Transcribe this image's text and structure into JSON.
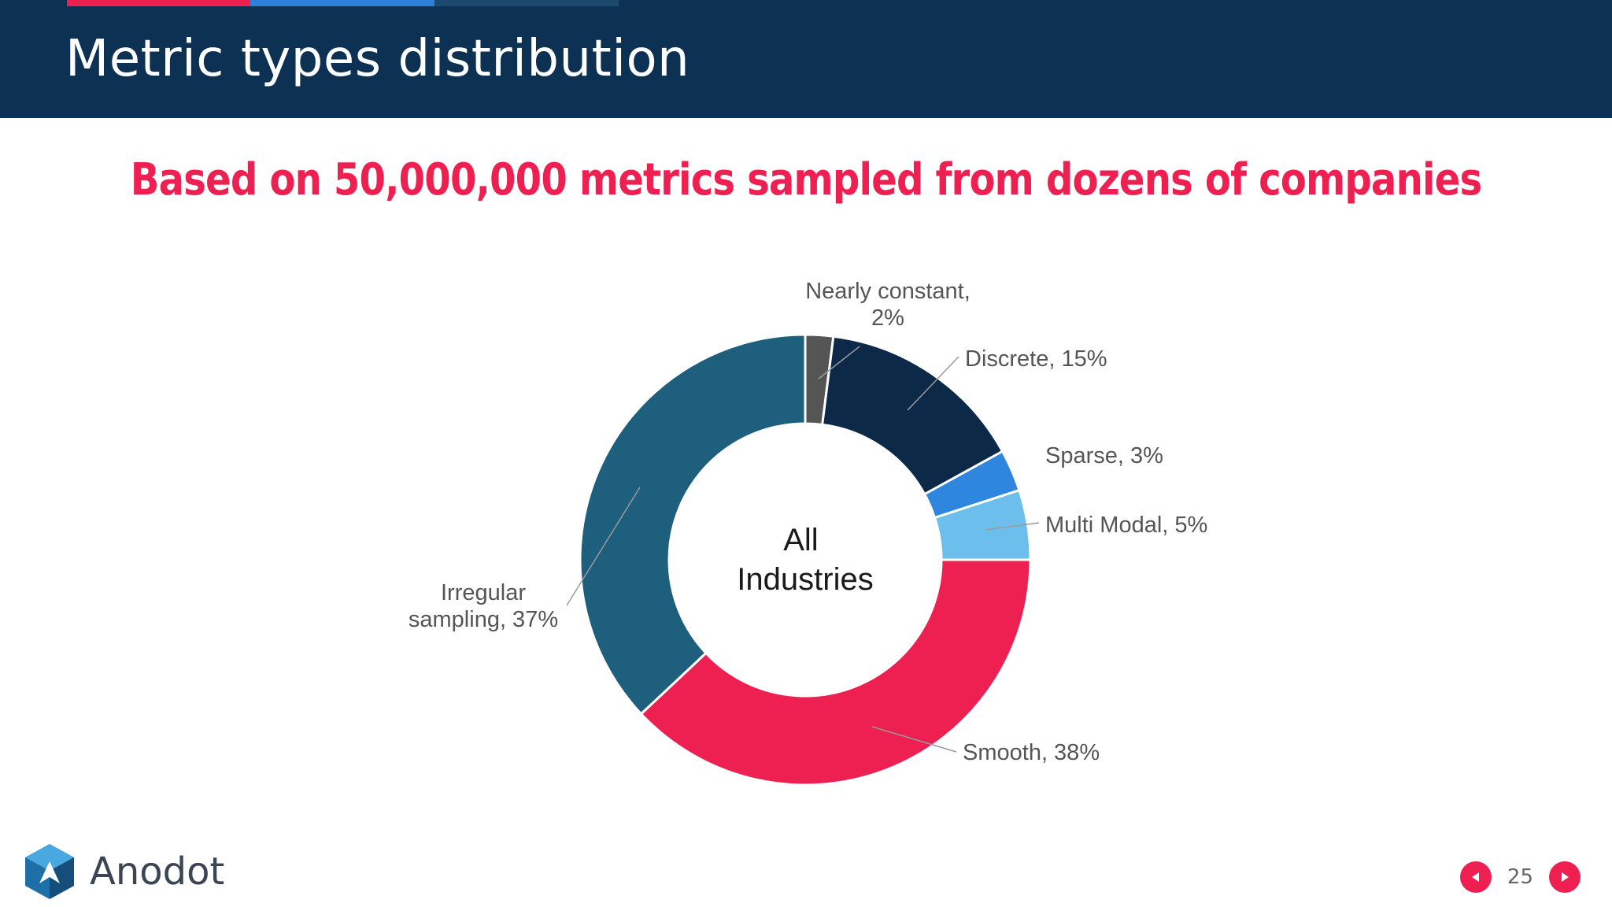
{
  "slide": {
    "title": "Metric types distribution",
    "subtitle": "Based on 50,000,000 metrics sampled from dozens of companies",
    "page_number": "25",
    "accent_colors": [
      "#ee2052",
      "#2e7fd9",
      "#1c4a6e"
    ]
  },
  "logo": {
    "text": "Anodot",
    "icon": "anodot-logo-icon"
  },
  "navigation": {
    "prev_icon": "triangle-left-icon",
    "next_icon": "triangle-right-icon",
    "button_color": "#ee2052"
  },
  "chart_data": {
    "type": "pie",
    "variant": "donut",
    "center_label": [
      "All",
      "Industries"
    ],
    "slices": [
      {
        "name": "Nearly constant",
        "value": 2,
        "label_lines": [
          "Nearly constant,",
          "2%"
        ],
        "color": "#555555"
      },
      {
        "name": "Discrete",
        "value": 15,
        "label_lines": [
          "Discrete, 15%"
        ],
        "color": "#0c2a48"
      },
      {
        "name": "Sparse",
        "value": 3,
        "label_lines": [
          "Sparse, 3%"
        ],
        "color": "#2e86de"
      },
      {
        "name": "Multi Modal",
        "value": 5,
        "label_lines": [
          "Multi Modal, 5%"
        ],
        "color": "#6cbfec"
      },
      {
        "name": "Smooth",
        "value": 38,
        "label_lines": [
          "Smooth, 38%"
        ],
        "color": "#ee2052"
      },
      {
        "name": "Irregular sampling",
        "value": 37,
        "label_lines": [
          "Irregular",
          "sampling, 37%"
        ],
        "color": "#1e5f7e"
      }
    ]
  }
}
